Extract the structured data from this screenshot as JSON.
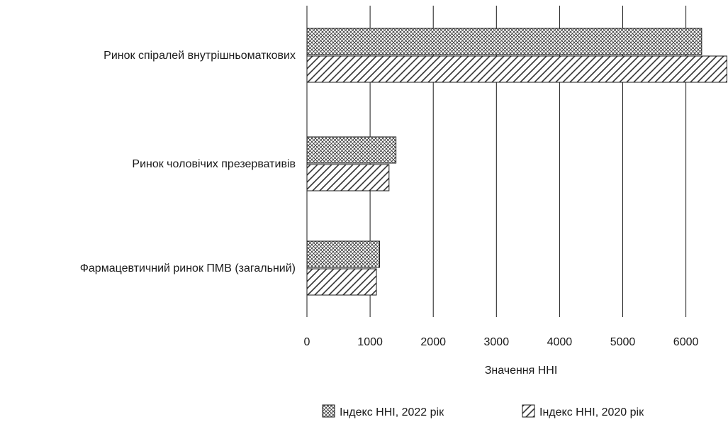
{
  "chart_data": {
    "type": "bar",
    "orientation": "horizontal",
    "title": "",
    "xlabel": "Значення HHI",
    "ylabel": "",
    "xlim": [
      0,
      6650
    ],
    "xticks": [
      0,
      1000,
      2000,
      3000,
      4000,
      5000,
      6000
    ],
    "grid": true,
    "legend_position": "bottom-right",
    "categories": [
      "Ринок спіралей внутрішньоматкових",
      "Ринок чоловічих презервативів",
      "Фармацевтичний ринок ПМВ (загальний)"
    ],
    "series": [
      {
        "name": "Індекс HHI, 2022 рік",
        "pattern": "crosshatch",
        "values": [
          6250,
          1410,
          1150
        ]
      },
      {
        "name": "Індекс HHI, 2020 рік",
        "pattern": "diagonal",
        "values": [
          6650,
          1300,
          1100
        ]
      }
    ]
  }
}
